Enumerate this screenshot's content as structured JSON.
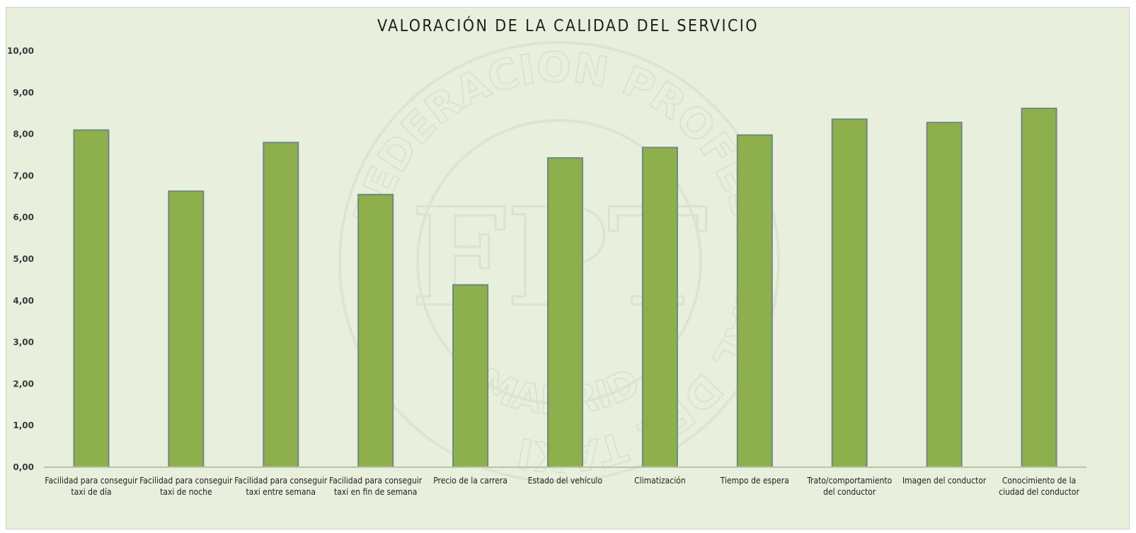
{
  "chart_data": {
    "type": "bar",
    "title": "VALORACIÓN DE LA CALIDAD DEL SERVICIO",
    "xlabel": "",
    "ylabel": "",
    "ylim": [
      0,
      10
    ],
    "yticks": [
      "0,00",
      "1,00",
      "2,00",
      "3,00",
      "4,00",
      "5,00",
      "6,00",
      "7,00",
      "8,00",
      "9,00",
      "10,00"
    ],
    "categories": [
      "Facilidad para conseguir taxi de día",
      "Facilidad para conseguir taxi de noche",
      "Facilidad para conseguir taxi entre semana",
      "Facilidad para conseguir taxi en fin de semana",
      "Precio de la carrera",
      "Estado del vehículo",
      "Climatización",
      "Tiempo de espera",
      "Trato/comportamiento del conductor",
      "Imagen del conductor",
      "Conocimiento de la ciudad del conductor"
    ],
    "values": [
      8.1,
      6.63,
      7.8,
      6.55,
      4.38,
      7.43,
      7.68,
      7.98,
      8.36,
      8.28,
      8.62
    ],
    "bar_color": "#8eb04c",
    "bar_edge_color": "#6e8a80",
    "grid": false,
    "legend": false
  },
  "watermark": {
    "ring_text": "FEDERACION PROFESIONAL DEL TAXI",
    "bottom_text": "MADRID",
    "monogram": "FPT"
  }
}
